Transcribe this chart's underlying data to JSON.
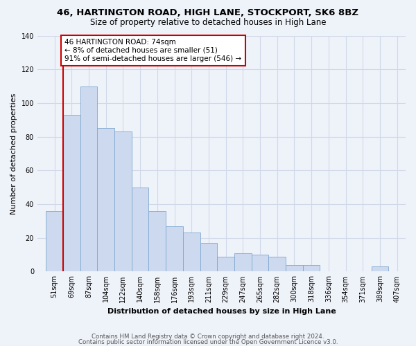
{
  "title": "46, HARTINGTON ROAD, HIGH LANE, STOCKPORT, SK6 8BZ",
  "subtitle": "Size of property relative to detached houses in High Lane",
  "xlabel": "Distribution of detached houses by size in High Lane",
  "ylabel": "Number of detached properties",
  "categories": [
    "51sqm",
    "69sqm",
    "87sqm",
    "104sqm",
    "122sqm",
    "140sqm",
    "158sqm",
    "176sqm",
    "193sqm",
    "211sqm",
    "229sqm",
    "247sqm",
    "265sqm",
    "282sqm",
    "300sqm",
    "318sqm",
    "336sqm",
    "354sqm",
    "371sqm",
    "389sqm",
    "407sqm"
  ],
  "values": [
    36,
    93,
    110,
    85,
    83,
    50,
    36,
    27,
    23,
    17,
    9,
    11,
    10,
    9,
    4,
    4,
    0,
    0,
    0,
    3,
    0
  ],
  "bar_color": "#ccd9ee",
  "bar_edge_color": "#7fa8d0",
  "vline_x_idx": 1,
  "vline_color": "#cc0000",
  "annotation_line1": "46 HARTINGTON ROAD: 74sqm",
  "annotation_line2": "← 8% of detached houses are smaller (51)",
  "annotation_line3": "91% of semi-detached houses are larger (546) →",
  "annotation_box_color": "#ffffff",
  "annotation_box_edge": "#cc0000",
  "ylim": [
    0,
    140
  ],
  "yticks": [
    0,
    20,
    40,
    60,
    80,
    100,
    120,
    140
  ],
  "footer_line1": "Contains HM Land Registry data © Crown copyright and database right 2024.",
  "footer_line2": "Contains public sector information licensed under the Open Government Licence v3.0.",
  "bg_color": "#eef2f9",
  "grid_color": "#d0d8e8",
  "title_fontsize": 9.5,
  "subtitle_fontsize": 8.5,
  "xlabel_fontsize": 8,
  "ylabel_fontsize": 8,
  "tick_fontsize": 7,
  "footer_fontsize": 6.2
}
